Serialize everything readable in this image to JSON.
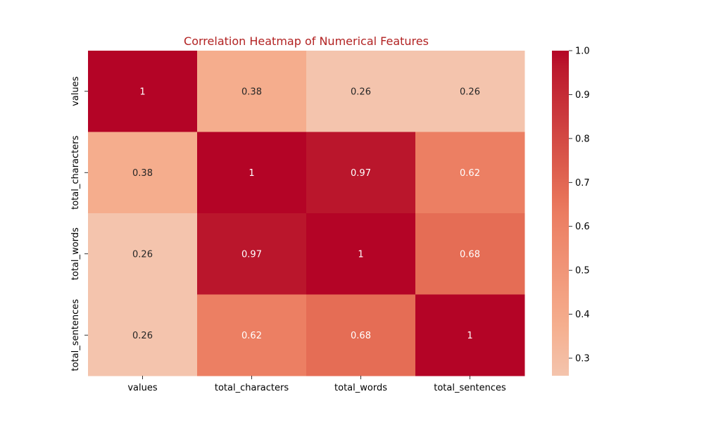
{
  "chart_data": {
    "type": "heatmap",
    "title": "Correlation Heatmap of Numerical Features",
    "title_color": "#b22222",
    "xlabel": "",
    "ylabel": "",
    "x_labels": [
      "values",
      "total_characters",
      "total_words",
      "total_sentences"
    ],
    "y_labels": [
      "values",
      "total_characters",
      "total_words",
      "total_sentences"
    ],
    "matrix": [
      [
        1,
        0.38,
        0.26,
        0.26
      ],
      [
        0.38,
        1,
        0.97,
        0.62
      ],
      [
        0.26,
        0.97,
        1,
        0.68
      ],
      [
        0.26,
        0.62,
        0.68,
        1
      ]
    ],
    "annotations": [
      [
        "1",
        "0.38",
        "0.26",
        "0.26"
      ],
      [
        "0.38",
        "1",
        "0.97",
        "0.62"
      ],
      [
        "0.26",
        "0.97",
        "1",
        "0.68"
      ],
      [
        "0.26",
        "0.62",
        "0.68",
        "1"
      ]
    ],
    "colormap": "coolwarm",
    "vmin": 0.26,
    "vmax": 1.0,
    "colorbar_ticks": [
      0.3,
      0.4,
      0.5,
      0.6,
      0.7,
      0.8,
      0.9,
      1.0
    ],
    "colorbar_tick_labels": [
      "0.3",
      "0.4",
      "0.5",
      "0.6",
      "0.7",
      "0.8",
      "0.9",
      "1.0"
    ],
    "grid": false,
    "legend": "colorbar-right"
  }
}
